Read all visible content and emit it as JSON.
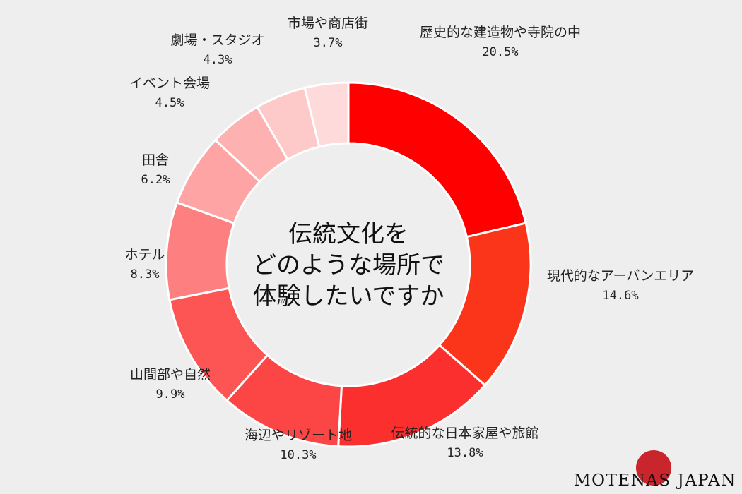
{
  "chart_data": {
    "type": "pie",
    "title": "伝統文化を\nどのような場所で\n体験したいですか",
    "slices": [
      {
        "label": "歴史的な建造物や寺院の中",
        "value": 20.5,
        "display": "20.5%",
        "color": "#ff0000"
      },
      {
        "label": "現代的なアーバンエリア",
        "value": 14.6,
        "display": "14.6%",
        "color": "#fb3519"
      },
      {
        "label": "伝統的な日本家屋や旅館",
        "value": 13.8,
        "display": "13.8%",
        "color": "#fc2f2f"
      },
      {
        "label": "海辺やリゾート地",
        "value": 10.3,
        "display": "10.3%",
        "color": "#fc4545"
      },
      {
        "label": "山間部や自然",
        "value": 9.9,
        "display": "9.9%",
        "color": "#fd5454"
      },
      {
        "label": "ホテル",
        "value": 8.3,
        "display": "8.3%",
        "color": "#fd7f7f"
      },
      {
        "label": "田舎",
        "value": 6.2,
        "display": "6.2%",
        "color": "#fea4a4"
      },
      {
        "label": "イベント会場",
        "value": 4.5,
        "display": "4.5%",
        "color": "#feb1b1"
      },
      {
        "label": "劇場・スタジオ",
        "value": 4.3,
        "display": "4.3%",
        "color": "#fec9c9"
      },
      {
        "label": "市場や商店街",
        "value": 3.7,
        "display": "3.7%",
        "color": "#ffdada"
      }
    ]
  },
  "brand": {
    "text": "MOTENAS JAPAN",
    "dot_color": "#c8252c"
  },
  "background": "#eeeeee"
}
